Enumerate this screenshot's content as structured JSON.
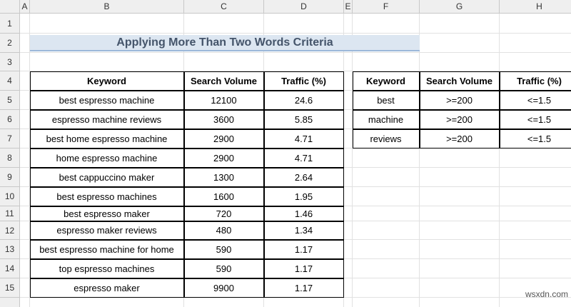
{
  "column_headers": [
    "A",
    "B",
    "C",
    "D",
    "E",
    "F",
    "G",
    "H"
  ],
  "row_headers": [
    1,
    2,
    3,
    4,
    5,
    6,
    7,
    8,
    9,
    10,
    11,
    12,
    13,
    14,
    15
  ],
  "title": "Applying More Than Two Words Criteria",
  "table": {
    "headers": [
      "Keyword",
      "Search Volume",
      "Traffic (%)"
    ],
    "rows": [
      [
        "best espresso machine",
        12100,
        24.6
      ],
      [
        "espresso machine reviews",
        3600,
        5.85
      ],
      [
        "best home espresso machine",
        2900,
        4.71
      ],
      [
        "home espresso machine",
        2900,
        4.71
      ],
      [
        "best cappuccino maker",
        1300,
        2.64
      ],
      [
        "best espresso machines",
        1600,
        1.95
      ],
      [
        "best espresso maker",
        720,
        1.46
      ],
      [
        "espresso maker reviews",
        480,
        1.34
      ],
      [
        "best espresso machine for home",
        590,
        1.17
      ],
      [
        "top espresso machines",
        590,
        1.17
      ],
      [
        "espresso maker",
        9900,
        1.17
      ]
    ]
  },
  "criteria": {
    "headers": [
      "Keyword",
      "Search Volume",
      "Traffic (%)"
    ],
    "rows": [
      [
        "best",
        ">=200",
        "<=1.5"
      ],
      [
        "machine",
        ">=200",
        "<=1.5"
      ],
      [
        "reviews",
        ">=200",
        "<=1.5"
      ]
    ]
  },
  "watermark": "wsxdn.com"
}
